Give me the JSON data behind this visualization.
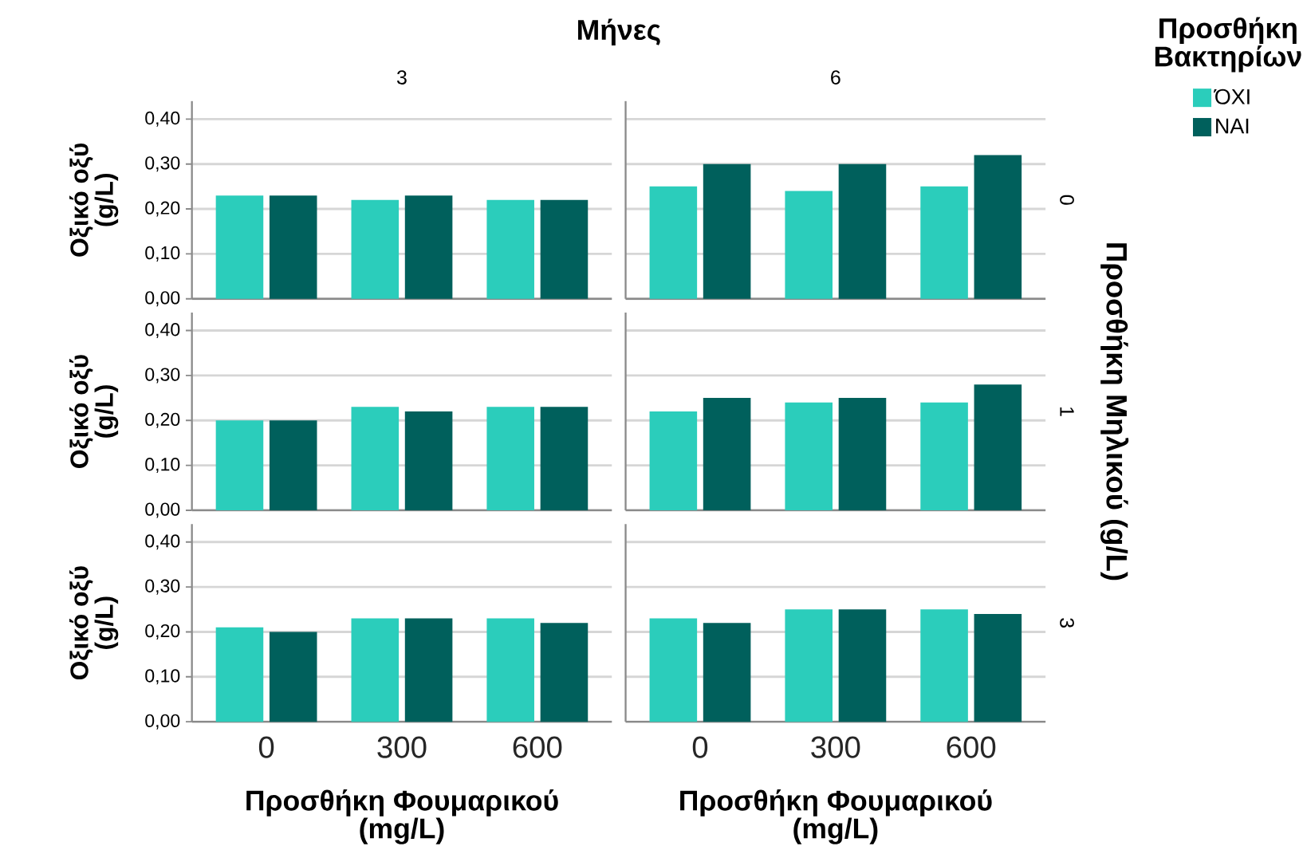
{
  "chart_data": [
    {
      "type": "bar",
      "title": "3",
      "annotations": [
        "Μήνες"
      ],
      "ylabel": "Οξικό οξύ (g/L)",
      "categories": [
        "0",
        "300",
        "600"
      ],
      "series": [
        {
          "color": "#2bcdbb",
          "values": [
            0.23,
            0.22,
            0.22
          ]
        },
        {
          "color": "#00605c",
          "values": [
            0.23,
            0.23,
            0.22
          ]
        }
      ],
      "ylim": [
        0,
        0.44
      ],
      "yticks": [
        {
          "value": 0,
          "label": "0,00"
        },
        {
          "value": 0.1,
          "label": "0,10"
        },
        {
          "value": 0.2,
          "label": "0,20"
        },
        {
          "value": 0.3,
          "label": "0,30"
        },
        {
          "value": 0.4,
          "label": "0,40"
        }
      ],
      "grid": "y",
      "tick_labels": "y"
    },
    {
      "type": "bar",
      "title": "6",
      "y2label": "0",
      "legend_title": "Προσθήκη Βακτηρίων",
      "legend": "right",
      "categories": [
        "0",
        "300",
        "600"
      ],
      "series": [
        {
          "name": "ΌΧΙ",
          "color": "#2bcdbb",
          "values": [
            0.25,
            0.24,
            0.25
          ]
        },
        {
          "name": "ΝΑΙ",
          "color": "#00605c",
          "values": [
            0.3,
            0.3,
            0.32
          ]
        }
      ],
      "ylim": [
        0,
        0.44
      ],
      "yticks": [
        {
          "value": 0,
          "label": null
        },
        {
          "value": 0.1,
          "label": null
        },
        {
          "value": 0.2,
          "label": null
        },
        {
          "value": 0.3,
          "label": null
        },
        {
          "value": 0.4,
          "label": null
        }
      ],
      "grid": "y",
      "tick_labels": false
    },
    {
      "type": "bar",
      "ylabel": "Οξικό οξύ (g/L)",
      "categories": [
        "0",
        "300",
        "600"
      ],
      "series": [
        {
          "color": "#2bcdbb",
          "values": [
            0.2,
            0.23,
            0.23
          ]
        },
        {
          "color": "#00605c",
          "values": [
            0.2,
            0.22,
            0.23
          ]
        }
      ],
      "ylim": [
        0,
        0.44
      ],
      "yticks": [
        {
          "value": 0,
          "label": "0,00"
        },
        {
          "value": 0.1,
          "label": "0,10"
        },
        {
          "value": 0.2,
          "label": "0,20"
        },
        {
          "value": 0.3,
          "label": "0,30"
        },
        {
          "value": 0.4,
          "label": "0,40"
        }
      ],
      "grid": "y",
      "tick_labels": "y"
    },
    {
      "type": "bar",
      "y2label": "1",
      "annotations": [
        "Προσθήκη Μηλικού (g/L)"
      ],
      "categories": [
        "0",
        "300",
        "600"
      ],
      "series": [
        {
          "color": "#2bcdbb",
          "values": [
            0.22,
            0.24,
            0.24
          ]
        },
        {
          "color": "#00605c",
          "values": [
            0.25,
            0.25,
            0.28
          ]
        }
      ],
      "ylim": [
        0,
        0.44
      ],
      "yticks": [
        {
          "value": 0,
          "label": null
        },
        {
          "value": 0.1,
          "label": null
        },
        {
          "value": 0.2,
          "label": null
        },
        {
          "value": 0.3,
          "label": null
        },
        {
          "value": 0.4,
          "label": null
        }
      ],
      "grid": "y",
      "tick_labels": false
    },
    {
      "type": "bar",
      "ylabel": "Οξικό οξύ (g/L)",
      "xlabel": "Προσθήκη Φουμαρικού (mg/L)",
      "categories": [
        "0",
        "300",
        "600"
      ],
      "series": [
        {
          "color": "#2bcdbb",
          "values": [
            0.21,
            0.23,
            0.23
          ]
        },
        {
          "color": "#00605c",
          "values": [
            0.2,
            0.23,
            0.22
          ]
        }
      ],
      "ylim": [
        0,
        0.44
      ],
      "yticks": [
        {
          "value": 0,
          "label": "0,00"
        },
        {
          "value": 0.1,
          "label": "0,10"
        },
        {
          "value": 0.2,
          "label": "0,20"
        },
        {
          "value": 0.3,
          "label": "0,30"
        },
        {
          "value": 0.4,
          "label": "0,40"
        }
      ],
      "grid": "y"
    },
    {
      "type": "bar",
      "y2label": "3",
      "xlabel": "Προσθήκη Φουμαρικού (mg/L)",
      "categories": [
        "0",
        "300",
        "600"
      ],
      "series": [
        {
          "color": "#2bcdbb",
          "values": [
            0.23,
            0.25,
            0.25
          ]
        },
        {
          "color": "#00605c",
          "values": [
            0.22,
            0.25,
            0.24
          ]
        }
      ],
      "ylim": [
        0,
        0.44
      ],
      "yticks": [
        {
          "value": 0,
          "label": null
        },
        {
          "value": 0.1,
          "label": null
        },
        {
          "value": 0.2,
          "label": null
        },
        {
          "value": 0.3,
          "label": null
        },
        {
          "value": 0.4,
          "label": null
        }
      ],
      "grid": "y",
      "tick_labels": "x"
    }
  ]
}
